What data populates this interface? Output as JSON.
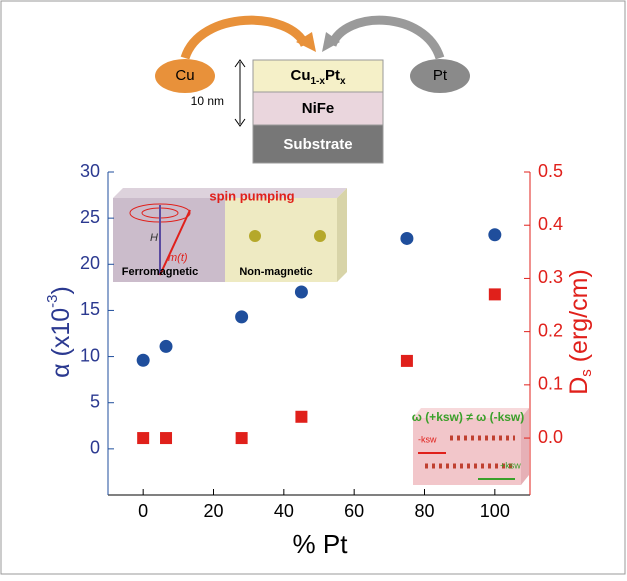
{
  "chart_data": {
    "type": "scatter",
    "x_label": "% Pt",
    "y_label": [
      "α (x10",
      "-3",
      ")"
    ],
    "y2_label": [
      "D",
      "s",
      " (erg/cm)"
    ],
    "xlim": [
      -10,
      110
    ],
    "xticks": [
      0,
      20,
      40,
      60,
      80,
      100
    ],
    "ylim": [
      -5,
      30
    ],
    "yticks": [
      0,
      5,
      10,
      15,
      20,
      25,
      30
    ],
    "y2lim": [
      -0.107,
      0.5
    ],
    "y2ticks": [
      {
        "value": 0,
        "label": "0.0"
      },
      0.1,
      0.2,
      0.3,
      0.4,
      0.5
    ],
    "series": [
      {
        "color": "#1f4e9c",
        "marker": "circle",
        "x": [
          0,
          6.5,
          28,
          45,
          75,
          100
        ],
        "values": [
          9.6,
          11.1,
          14.3,
          17.0,
          22.8,
          23.2
        ]
      },
      {
        "color": "#e0201b",
        "marker": "square",
        "axis": "y2",
        "x": [
          0,
          6.5,
          28,
          45,
          75,
          100
        ],
        "values": [
          0,
          0,
          0,
          0.04,
          0.145,
          0.27
        ]
      }
    ],
    "annotations": {
      "spin": "spin pumping",
      "h": "H",
      "mt": "m(t)",
      "ferro": "Ferromagnetic",
      "nonmag": "Non-magnetic",
      "omega": "ω (+ksw) ≠ ω (-ksw)",
      "minus": "-ksw",
      "plus": "+ksw"
    }
  },
  "diagram": {
    "cu": "Cu",
    "pt": "Pt",
    "layer": [
      "Cu",
      "1-x",
      "Pt",
      "x"
    ],
    "nife": "NiFe",
    "substrate": "Substrate",
    "thickness": "10 nm"
  }
}
